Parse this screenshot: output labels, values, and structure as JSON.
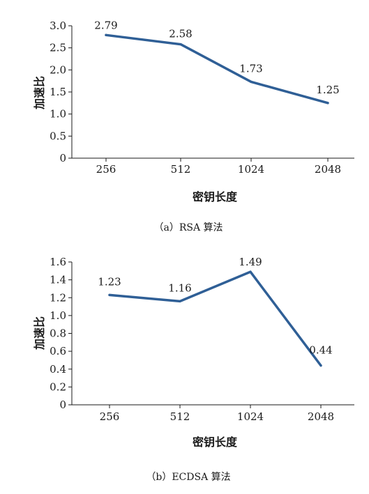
{
  "chart_data": [
    {
      "type": "line",
      "categories": [
        "256",
        "512",
        "1024",
        "2048"
      ],
      "values": [
        2.79,
        2.58,
        1.73,
        1.25
      ],
      "data_labels": [
        "2.79",
        "2.58",
        "1.73",
        "1.25"
      ],
      "yticks": [
        "0",
        "0.5",
        "1.0",
        "1.5",
        "2.0",
        "2.5",
        "3.0"
      ],
      "ylim": [
        0,
        3.0
      ],
      "xlabel": "密钥长度",
      "ylabel": "加速比",
      "caption": "（a）RSA 算法",
      "line_color": "#2f5f96",
      "grid": false
    },
    {
      "type": "line",
      "categories": [
        "256",
        "512",
        "1024",
        "2048"
      ],
      "values": [
        1.23,
        1.16,
        1.49,
        0.44
      ],
      "data_labels": [
        "1.23",
        "1.16",
        "1.49",
        "0.44"
      ],
      "yticks": [
        "0",
        "0.2",
        "0.4",
        "0.6",
        "0.8",
        "1.0",
        "1.2",
        "1.4",
        "1.6"
      ],
      "ylim": [
        0,
        1.6
      ],
      "xlabel": "密钥长度",
      "ylabel": "加速比",
      "caption": "（b）ECDSA 算法",
      "line_color": "#2f5f96",
      "grid": false
    }
  ]
}
